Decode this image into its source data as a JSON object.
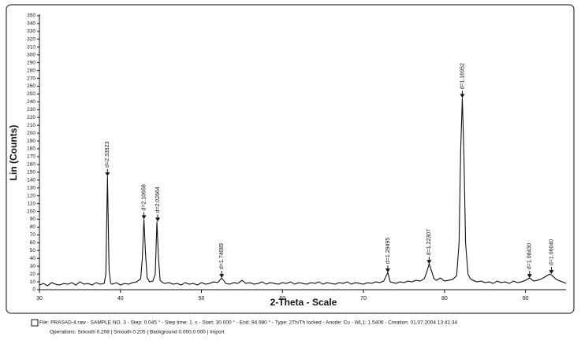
{
  "chart_data": {
    "type": "line",
    "ylabel": "Lin (Counts)",
    "xlabel": "2-Theta - Scale",
    "color": "#111111",
    "xlim": [
      30,
      95
    ],
    "ylim": [
      0,
      350
    ],
    "xticks": [
      30,
      40,
      50,
      60,
      70,
      80,
      90
    ],
    "yticks": [
      0,
      10,
      20,
      30,
      40,
      50,
      60,
      70,
      80,
      90,
      100,
      110,
      120,
      130,
      140,
      150,
      160,
      170,
      180,
      190,
      200,
      210,
      220,
      230,
      240,
      250,
      260,
      270,
      280,
      290,
      300,
      310,
      320,
      330,
      340,
      350
    ],
    "x": [
      30,
      30.5,
      31,
      31.5,
      32,
      32.5,
      33,
      33.5,
      34,
      34.5,
      35,
      35.5,
      36,
      36.5,
      37,
      37.5,
      38,
      38.2,
      38.4,
      38.6,
      38.8,
      39,
      39.5,
      40,
      40.5,
      41,
      41.5,
      42,
      42.5,
      42.7,
      42.9,
      43.1,
      43.3,
      43.6,
      44,
      44.3,
      44.5,
      44.7,
      44.9,
      45.2,
      45.5,
      46,
      46.5,
      47,
      47.5,
      48,
      48.5,
      49,
      49.5,
      50,
      50.5,
      51,
      51.5,
      52,
      52.5,
      53,
      53.5,
      54,
      54.5,
      55,
      55.5,
      56,
      56.5,
      57,
      57.5,
      58,
      58.5,
      59,
      59.5,
      60,
      60.5,
      61,
      61.5,
      62,
      62.5,
      63,
      63.5,
      64,
      64.5,
      65,
      65.5,
      66,
      66.5,
      67,
      67.5,
      68,
      68.5,
      69,
      69.5,
      70,
      70.5,
      71,
      71.5,
      72,
      72.5,
      73,
      73.3,
      73.7,
      74,
      74.5,
      75,
      75.5,
      76,
      76.5,
      77,
      77.5,
      77.8,
      78.1,
      78.4,
      78.7,
      79,
      79.5,
      80,
      80.5,
      81,
      81.5,
      81.8,
      82,
      82.2,
      82.4,
      82.6,
      82.9,
      83.2,
      83.5,
      84,
      84.5,
      85,
      85.5,
      86,
      86.5,
      87,
      87.5,
      88,
      88.5,
      89,
      89.5,
      90,
      90.5,
      91,
      91.5,
      92,
      92.5,
      93,
      93.3,
      93.8,
      94.3,
      95
    ],
    "values": [
      6,
      8,
      5,
      9,
      7,
      6,
      8,
      7,
      9,
      6,
      10,
      7,
      8,
      6,
      9,
      7,
      8,
      20,
      145,
      25,
      8,
      7,
      9,
      6,
      8,
      7,
      9,
      10,
      14,
      40,
      90,
      45,
      15,
      10,
      11,
      20,
      87,
      40,
      12,
      9,
      8,
      9,
      7,
      8,
      6,
      9,
      7,
      8,
      6,
      9,
      7,
      8,
      10,
      9,
      15,
      8,
      7,
      9,
      8,
      12,
      8,
      9,
      7,
      8,
      10,
      7,
      9,
      8,
      7,
      9,
      8,
      10,
      7,
      9,
      8,
      7,
      9,
      8,
      10,
      7,
      9,
      8,
      7,
      9,
      8,
      10,
      7,
      9,
      8,
      7,
      9,
      8,
      10,
      9,
      11,
      22,
      10,
      9,
      8,
      10,
      9,
      11,
      10,
      12,
      11,
      14,
      22,
      33,
      24,
      14,
      12,
      15,
      11,
      12,
      13,
      18,
      60,
      180,
      245,
      170,
      60,
      20,
      14,
      12,
      10,
      11,
      9,
      10,
      8,
      11,
      9,
      10,
      8,
      11,
      9,
      10,
      12,
      15,
      11,
      12,
      14,
      17,
      20,
      18,
      13,
      11,
      8
    ],
    "annotations": [
      {
        "x": 38.4,
        "y": 145,
        "label": "d=2.33923"
      },
      {
        "x": 42.9,
        "y": 90,
        "label": "d=2.10658"
      },
      {
        "x": 44.6,
        "y": 87,
        "label": "d=2.02664"
      },
      {
        "x": 52.5,
        "y": 15,
        "label": "d=1.74089"
      },
      {
        "x": 73,
        "y": 22,
        "label": "d=1.29495"
      },
      {
        "x": 78.1,
        "y": 33,
        "label": "d=1.22307"
      },
      {
        "x": 82.2,
        "y": 245,
        "label": "d=1.16952"
      },
      {
        "x": 90.5,
        "y": 15,
        "label": "d=1.08430"
      },
      {
        "x": 93.2,
        "y": 20,
        "label": "d=1.06040"
      }
    ]
  },
  "footer": {
    "file": "File: PRASAD-4.raw - SAMPLE NO. 3 - Step: 0.045 ° - Step time: 1. s - Start: 30.000 ° - End: 94.980 ° - Type: 2Th/Th locked - Anode: Cu - WL1: 1.5406 - Creation: 01.07.2004 13:41:34",
    "operations": "Operations: Smooth 0.208 | Smooth 0.205 | Background 0.000,0.000 | Import"
  }
}
